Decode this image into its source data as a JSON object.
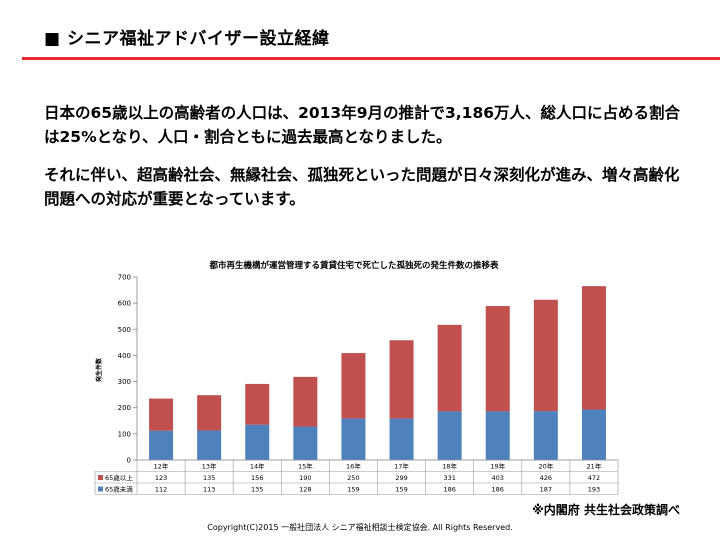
{
  "slide": {
    "title": "■ シニア福祉アドバイザー設立経緯",
    "paragraph1": "日本の65歳以上の高齢者の人口は、2013年9月の推計で3,186万人、総人口に占める割合は25%となり、人口・割合ともに過去最高となりました。",
    "paragraph2": "それに伴い、超高齢社会、無縁社会、孤独死といった問題が日々深刻化が進み、増々高齢化問題への対応が重要となっています。",
    "source_note": "※内閣府 共生社会政策調べ",
    "copyright": "Copyright(C)2015 一般社団法人 シニア福祉相談士検定協会. All Rights Reserved.",
    "accent_color": "#e8292f"
  },
  "chart_data": {
    "type": "bar",
    "stacked": true,
    "title": "都市再生機構が運営管理する賃貸住宅で死亡した孤独死の発生件数の推移表",
    "ylabel": "発生件数",
    "xlabel": "",
    "ylim": [
      0,
      700
    ],
    "yticks": [
      0,
      100,
      200,
      300,
      400,
      500,
      600,
      700
    ],
    "grid": false,
    "legend": "data-table",
    "categories": [
      "12年",
      "13年",
      "14年",
      "15年",
      "16年",
      "17年",
      "18年",
      "19年",
      "20年",
      "21年"
    ],
    "series": [
      {
        "name": "65歳未満",
        "color": "#4f81bd",
        "values": [
          112,
          113,
          135,
          128,
          159,
          159,
          186,
          186,
          187,
          193
        ]
      },
      {
        "name": "65歳以上",
        "color": "#c0504d",
        "values": [
          123,
          135,
          156,
          190,
          250,
          299,
          331,
          403,
          426,
          472
        ]
      }
    ],
    "table_rows": [
      {
        "label": "65歳以上",
        "color": "#c0504d",
        "values": [
          123,
          135,
          156,
          190,
          250,
          299,
          331,
          403,
          426,
          472
        ]
      },
      {
        "label": "65歳未満",
        "color": "#4f81bd",
        "values": [
          112,
          113,
          135,
          128,
          159,
          159,
          186,
          186,
          187,
          193
        ]
      }
    ]
  }
}
